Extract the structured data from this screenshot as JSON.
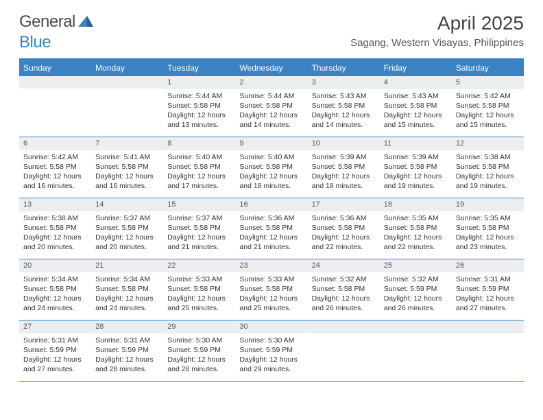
{
  "logo": {
    "text1": "General",
    "text2": "Blue"
  },
  "title": "April 2025",
  "location": "Sagang, Western Visayas, Philippines",
  "colors": {
    "accent": "#3b82c4",
    "header_bar_bg": "#eceff1",
    "text": "#333333",
    "title_text": "#444444",
    "location_text": "#555555"
  },
  "day_headers": [
    "Sunday",
    "Monday",
    "Tuesday",
    "Wednesday",
    "Thursday",
    "Friday",
    "Saturday"
  ],
  "weeks": [
    [
      {
        "day": "",
        "lines": []
      },
      {
        "day": "",
        "lines": []
      },
      {
        "day": "1",
        "lines": [
          "Sunrise: 5:44 AM",
          "Sunset: 5:58 PM",
          "Daylight: 12 hours and 13 minutes."
        ]
      },
      {
        "day": "2",
        "lines": [
          "Sunrise: 5:44 AM",
          "Sunset: 5:58 PM",
          "Daylight: 12 hours and 14 minutes."
        ]
      },
      {
        "day": "3",
        "lines": [
          "Sunrise: 5:43 AM",
          "Sunset: 5:58 PM",
          "Daylight: 12 hours and 14 minutes."
        ]
      },
      {
        "day": "4",
        "lines": [
          "Sunrise: 5:43 AM",
          "Sunset: 5:58 PM",
          "Daylight: 12 hours and 15 minutes."
        ]
      },
      {
        "day": "5",
        "lines": [
          "Sunrise: 5:42 AM",
          "Sunset: 5:58 PM",
          "Daylight: 12 hours and 15 minutes."
        ]
      }
    ],
    [
      {
        "day": "6",
        "lines": [
          "Sunrise: 5:42 AM",
          "Sunset: 5:58 PM",
          "Daylight: 12 hours and 16 minutes."
        ]
      },
      {
        "day": "7",
        "lines": [
          "Sunrise: 5:41 AM",
          "Sunset: 5:58 PM",
          "Daylight: 12 hours and 16 minutes."
        ]
      },
      {
        "day": "8",
        "lines": [
          "Sunrise: 5:40 AM",
          "Sunset: 5:58 PM",
          "Daylight: 12 hours and 17 minutes."
        ]
      },
      {
        "day": "9",
        "lines": [
          "Sunrise: 5:40 AM",
          "Sunset: 5:58 PM",
          "Daylight: 12 hours and 18 minutes."
        ]
      },
      {
        "day": "10",
        "lines": [
          "Sunrise: 5:39 AM",
          "Sunset: 5:58 PM",
          "Daylight: 12 hours and 18 minutes."
        ]
      },
      {
        "day": "11",
        "lines": [
          "Sunrise: 5:39 AM",
          "Sunset: 5:58 PM",
          "Daylight: 12 hours and 19 minutes."
        ]
      },
      {
        "day": "12",
        "lines": [
          "Sunrise: 5:38 AM",
          "Sunset: 5:58 PM",
          "Daylight: 12 hours and 19 minutes."
        ]
      }
    ],
    [
      {
        "day": "13",
        "lines": [
          "Sunrise: 5:38 AM",
          "Sunset: 5:58 PM",
          "Daylight: 12 hours and 20 minutes."
        ]
      },
      {
        "day": "14",
        "lines": [
          "Sunrise: 5:37 AM",
          "Sunset: 5:58 PM",
          "Daylight: 12 hours and 20 minutes."
        ]
      },
      {
        "day": "15",
        "lines": [
          "Sunrise: 5:37 AM",
          "Sunset: 5:58 PM",
          "Daylight: 12 hours and 21 minutes."
        ]
      },
      {
        "day": "16",
        "lines": [
          "Sunrise: 5:36 AM",
          "Sunset: 5:58 PM",
          "Daylight: 12 hours and 21 minutes."
        ]
      },
      {
        "day": "17",
        "lines": [
          "Sunrise: 5:36 AM",
          "Sunset: 5:58 PM",
          "Daylight: 12 hours and 22 minutes."
        ]
      },
      {
        "day": "18",
        "lines": [
          "Sunrise: 5:35 AM",
          "Sunset: 5:58 PM",
          "Daylight: 12 hours and 22 minutes."
        ]
      },
      {
        "day": "19",
        "lines": [
          "Sunrise: 5:35 AM",
          "Sunset: 5:58 PM",
          "Daylight: 12 hours and 23 minutes."
        ]
      }
    ],
    [
      {
        "day": "20",
        "lines": [
          "Sunrise: 5:34 AM",
          "Sunset: 5:58 PM",
          "Daylight: 12 hours and 24 minutes."
        ]
      },
      {
        "day": "21",
        "lines": [
          "Sunrise: 5:34 AM",
          "Sunset: 5:58 PM",
          "Daylight: 12 hours and 24 minutes."
        ]
      },
      {
        "day": "22",
        "lines": [
          "Sunrise: 5:33 AM",
          "Sunset: 5:58 PM",
          "Daylight: 12 hours and 25 minutes."
        ]
      },
      {
        "day": "23",
        "lines": [
          "Sunrise: 5:33 AM",
          "Sunset: 5:58 PM",
          "Daylight: 12 hours and 25 minutes."
        ]
      },
      {
        "day": "24",
        "lines": [
          "Sunrise: 5:32 AM",
          "Sunset: 5:58 PM",
          "Daylight: 12 hours and 26 minutes."
        ]
      },
      {
        "day": "25",
        "lines": [
          "Sunrise: 5:32 AM",
          "Sunset: 5:59 PM",
          "Daylight: 12 hours and 26 minutes."
        ]
      },
      {
        "day": "26",
        "lines": [
          "Sunrise: 5:31 AM",
          "Sunset: 5:59 PM",
          "Daylight: 12 hours and 27 minutes."
        ]
      }
    ],
    [
      {
        "day": "27",
        "lines": [
          "Sunrise: 5:31 AM",
          "Sunset: 5:59 PM",
          "Daylight: 12 hours and 27 minutes."
        ]
      },
      {
        "day": "28",
        "lines": [
          "Sunrise: 5:31 AM",
          "Sunset: 5:59 PM",
          "Daylight: 12 hours and 28 minutes."
        ]
      },
      {
        "day": "29",
        "lines": [
          "Sunrise: 5:30 AM",
          "Sunset: 5:59 PM",
          "Daylight: 12 hours and 28 minutes."
        ]
      },
      {
        "day": "30",
        "lines": [
          "Sunrise: 5:30 AM",
          "Sunset: 5:59 PM",
          "Daylight: 12 hours and 29 minutes."
        ]
      },
      {
        "day": "",
        "lines": []
      },
      {
        "day": "",
        "lines": []
      },
      {
        "day": "",
        "lines": []
      }
    ]
  ]
}
